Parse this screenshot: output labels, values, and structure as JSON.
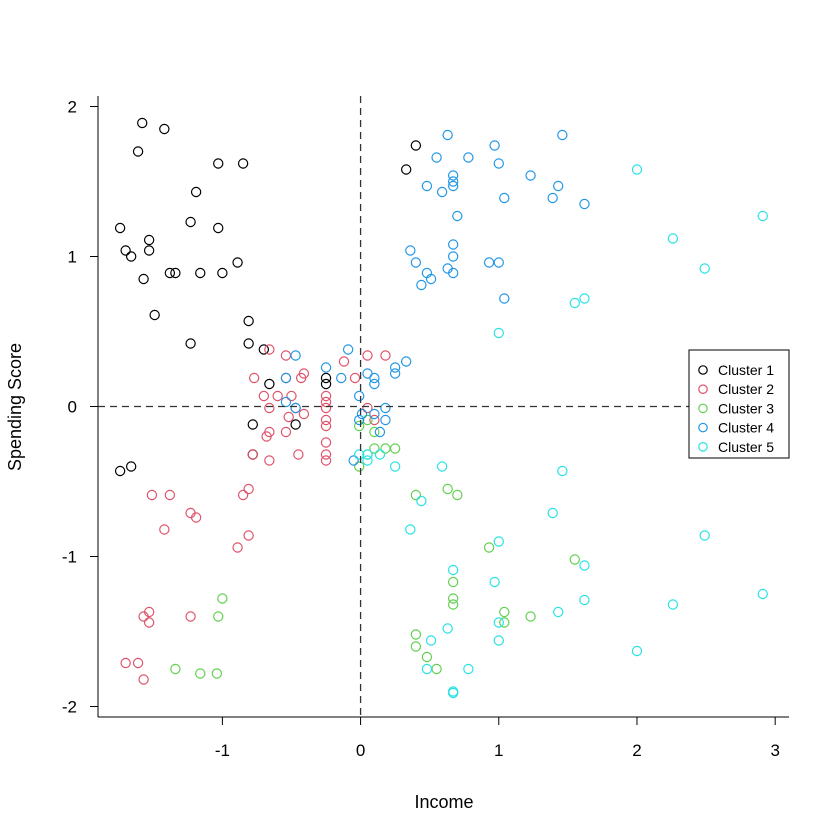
{
  "chart_data": {
    "type": "scatter",
    "title": "",
    "xlabel": "Income",
    "ylabel": "Spending Score",
    "xlim": [
      -1.9,
      3.1
    ],
    "ylim": [
      -2.07,
      2.07
    ],
    "x_ticks": [
      -1,
      0,
      1,
      2,
      3
    ],
    "y_ticks": [
      -2,
      -1,
      0,
      1,
      2
    ],
    "x_tick_labels": [
      "-1",
      "0",
      "1",
      "2",
      "3"
    ],
    "y_tick_labels": [
      "-2",
      "-1",
      "0",
      "1",
      "2"
    ],
    "reference_lines": {
      "x": 0,
      "y": 0,
      "style": "dashed"
    },
    "grid": false,
    "legend_position": "right",
    "series": [
      {
        "name": "Cluster 1",
        "color": "#000000",
        "points": [
          [
            -1.58,
            1.89
          ],
          [
            -1.42,
            1.85
          ],
          [
            -1.61,
            1.7
          ],
          [
            -1.03,
            1.62
          ],
          [
            -0.85,
            1.62
          ],
          [
            -1.19,
            1.43
          ],
          [
            -1.23,
            1.23
          ],
          [
            -1.74,
            1.19
          ],
          [
            -1.03,
            1.19
          ],
          [
            -1.53,
            1.11
          ],
          [
            -1.7,
            1.04
          ],
          [
            -1.53,
            1.04
          ],
          [
            -1.66,
            1.0
          ],
          [
            -0.89,
            0.96
          ],
          [
            -1.38,
            0.89
          ],
          [
            -1.34,
            0.89
          ],
          [
            -1.16,
            0.89
          ],
          [
            -1.0,
            0.89
          ],
          [
            -1.57,
            0.85
          ],
          [
            -1.49,
            0.61
          ],
          [
            -0.81,
            0.57
          ],
          [
            -1.23,
            0.42
          ],
          [
            -0.81,
            0.42
          ],
          [
            -0.7,
            0.38
          ],
          [
            -0.66,
            0.15
          ],
          [
            -0.25,
            0.19
          ],
          [
            -0.25,
            0.15
          ],
          [
            -0.78,
            -0.12
          ],
          [
            -0.47,
            -0.12
          ],
          [
            -0.78,
            -0.32
          ],
          [
            -1.74,
            -0.43
          ],
          [
            -1.66,
            -0.4
          ],
          [
            0.33,
            1.58
          ],
          [
            0.4,
            1.74
          ]
        ]
      },
      {
        "name": "Cluster 2",
        "color": "#DF536B",
        "points": [
          [
            -0.66,
            0.38
          ],
          [
            -0.54,
            0.34
          ],
          [
            0.05,
            0.34
          ],
          [
            0.18,
            0.34
          ],
          [
            -0.12,
            0.3
          ],
          [
            -0.41,
            0.22
          ],
          [
            -0.54,
            0.19
          ],
          [
            -0.77,
            0.19
          ],
          [
            -0.43,
            0.19
          ],
          [
            -0.04,
            0.19
          ],
          [
            -0.7,
            0.07
          ],
          [
            -0.6,
            0.07
          ],
          [
            -0.5,
            0.07
          ],
          [
            -0.25,
            0.07
          ],
          [
            -0.25,
            0.03
          ],
          [
            -0.66,
            -0.01
          ],
          [
            -0.47,
            -0.01
          ],
          [
            -0.25,
            -0.01
          ],
          [
            0.05,
            -0.01
          ],
          [
            -0.52,
            -0.07
          ],
          [
            -0.41,
            -0.05
          ],
          [
            -0.25,
            -0.09
          ],
          [
            0.1,
            -0.09
          ],
          [
            -0.66,
            -0.17
          ],
          [
            -0.54,
            -0.17
          ],
          [
            -0.25,
            -0.13
          ],
          [
            -0.68,
            -0.2
          ],
          [
            -0.25,
            -0.24
          ],
          [
            -0.78,
            -0.32
          ],
          [
            -0.45,
            -0.32
          ],
          [
            -0.25,
            -0.32
          ],
          [
            -0.66,
            -0.36
          ],
          [
            -0.25,
            -0.36
          ],
          [
            -0.81,
            -0.55
          ],
          [
            -1.51,
            -0.59
          ],
          [
            -1.38,
            -0.59
          ],
          [
            -0.85,
            -0.59
          ],
          [
            -1.23,
            -0.71
          ],
          [
            -1.19,
            -0.74
          ],
          [
            -1.42,
            -0.82
          ],
          [
            -0.81,
            -0.86
          ],
          [
            -0.89,
            -0.94
          ],
          [
            -1.53,
            -1.37
          ],
          [
            -1.57,
            -1.4
          ],
          [
            -1.53,
            -1.44
          ],
          [
            -1.23,
            -1.4
          ],
          [
            -1.7,
            -1.71
          ],
          [
            -1.61,
            -1.71
          ],
          [
            -1.57,
            -1.82
          ]
        ]
      },
      {
        "name": "Cluster 3",
        "color": "#61D04F",
        "points": [
          [
            0.05,
            -0.09
          ],
          [
            0.1,
            -0.17
          ],
          [
            -0.01,
            -0.13
          ],
          [
            0.1,
            -0.28
          ],
          [
            0.18,
            -0.28
          ],
          [
            0.25,
            -0.28
          ],
          [
            0.05,
            -0.32
          ],
          [
            -0.01,
            -0.4
          ],
          [
            0.4,
            -0.59
          ],
          [
            0.63,
            -0.55
          ],
          [
            0.7,
            -0.59
          ],
          [
            0.93,
            -0.94
          ],
          [
            1.55,
            -1.02
          ],
          [
            0.67,
            -1.17
          ],
          [
            0.67,
            -1.28
          ],
          [
            0.67,
            -1.32
          ],
          [
            -1.0,
            -1.28
          ],
          [
            -1.03,
            -1.4
          ],
          [
            1.04,
            -1.37
          ],
          [
            1.04,
            -1.44
          ],
          [
            1.23,
            -1.4
          ],
          [
            0.4,
            -1.52
          ],
          [
            0.4,
            -1.6
          ],
          [
            0.48,
            -1.67
          ],
          [
            0.55,
            -1.75
          ],
          [
            -1.34,
            -1.75
          ],
          [
            -1.16,
            -1.78
          ],
          [
            -1.04,
            -1.78
          ]
        ]
      },
      {
        "name": "Cluster 4",
        "color": "#2297E6",
        "points": [
          [
            0.63,
            1.81
          ],
          [
            1.46,
            1.81
          ],
          [
            0.97,
            1.74
          ],
          [
            0.55,
            1.66
          ],
          [
            0.78,
            1.66
          ],
          [
            1.0,
            1.62
          ],
          [
            1.23,
            1.54
          ],
          [
            0.67,
            1.54
          ],
          [
            0.67,
            1.5
          ],
          [
            0.67,
            1.47
          ],
          [
            0.48,
            1.47
          ],
          [
            1.43,
            1.47
          ],
          [
            0.59,
            1.43
          ],
          [
            1.04,
            1.39
          ],
          [
            1.39,
            1.39
          ],
          [
            1.62,
            1.35
          ],
          [
            0.7,
            1.27
          ],
          [
            0.67,
            1.08
          ],
          [
            0.36,
            1.04
          ],
          [
            0.67,
            1.0
          ],
          [
            0.4,
            0.96
          ],
          [
            0.93,
            0.96
          ],
          [
            1.0,
            0.96
          ],
          [
            0.48,
            0.89
          ],
          [
            0.67,
            0.89
          ],
          [
            0.63,
            0.92
          ],
          [
            0.51,
            0.85
          ],
          [
            0.44,
            0.81
          ],
          [
            1.04,
            0.72
          ],
          [
            -0.09,
            0.38
          ],
          [
            0.33,
            0.3
          ],
          [
            -0.47,
            0.34
          ],
          [
            -0.25,
            0.26
          ],
          [
            0.25,
            0.26
          ],
          [
            0.25,
            0.22
          ],
          [
            -0.54,
            0.19
          ],
          [
            0.1,
            0.19
          ],
          [
            -0.14,
            0.19
          ],
          [
            0.05,
            0.22
          ],
          [
            0.1,
            0.15
          ],
          [
            -0.01,
            0.07
          ],
          [
            -0.54,
            0.03
          ],
          [
            -0.47,
            -0.01
          ],
          [
            0.18,
            -0.01
          ],
          [
            0.1,
            -0.05
          ],
          [
            0.01,
            -0.05
          ],
          [
            -0.01,
            -0.09
          ],
          [
            0.18,
            -0.09
          ],
          [
            0.14,
            -0.17
          ],
          [
            -0.05,
            -0.36
          ]
        ]
      },
      {
        "name": "Cluster 5",
        "color": "#28E2E5",
        "points": [
          [
            2.91,
            1.27
          ],
          [
            2.26,
            1.12
          ],
          [
            2.49,
            0.92
          ],
          [
            1.62,
            0.72
          ],
          [
            1.55,
            0.69
          ],
          [
            1.0,
            0.49
          ],
          [
            -0.01,
            -0.32
          ],
          [
            0.05,
            -0.32
          ],
          [
            0.14,
            -0.32
          ],
          [
            0.05,
            -0.36
          ],
          [
            0.25,
            -0.4
          ],
          [
            0.59,
            -0.4
          ],
          [
            1.46,
            -0.43
          ],
          [
            0.44,
            -0.63
          ],
          [
            1.39,
            -0.71
          ],
          [
            0.36,
            -0.82
          ],
          [
            2.49,
            -0.86
          ],
          [
            1.0,
            -0.9
          ],
          [
            1.62,
            -1.06
          ],
          [
            0.67,
            -1.09
          ],
          [
            0.97,
            -1.17
          ],
          [
            2.91,
            -1.25
          ],
          [
            1.62,
            -1.29
          ],
          [
            2.26,
            -1.32
          ],
          [
            1.43,
            -1.37
          ],
          [
            1.0,
            -1.44
          ],
          [
            0.63,
            -1.48
          ],
          [
            0.51,
            -1.56
          ],
          [
            1.0,
            -1.56
          ],
          [
            2.0,
            -1.63
          ],
          [
            0.48,
            -1.75
          ],
          [
            0.78,
            -1.75
          ],
          [
            0.67,
            -1.9
          ],
          [
            0.67,
            -1.91
          ],
          [
            2.0,
            1.58
          ]
        ]
      }
    ]
  }
}
